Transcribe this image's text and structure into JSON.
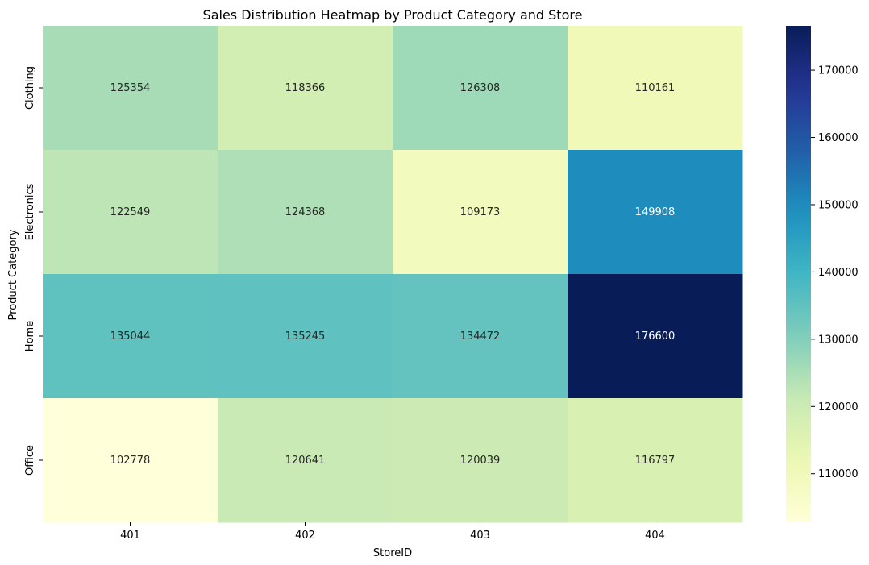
{
  "chart_data": {
    "type": "heatmap",
    "title": "Sales Distribution Heatmap by Product Category and Store",
    "xlabel": "StoreID",
    "ylabel": "Product Category",
    "x_categories": [
      "401",
      "402",
      "403",
      "404"
    ],
    "y_categories": [
      "Clothing",
      "Electronics",
      "Home",
      "Office"
    ],
    "values": [
      [
        125354,
        118366,
        126308,
        110161
      ],
      [
        122549,
        124368,
        109173,
        149908
      ],
      [
        135044,
        135245,
        134472,
        176600
      ],
      [
        102778,
        120641,
        120039,
        116797
      ]
    ],
    "colormap": "YlGnBu",
    "color_range": [
      102778,
      176600
    ],
    "colorbar_ticks": [
      "110000",
      "120000",
      "130000",
      "140000",
      "150000",
      "160000",
      "170000"
    ],
    "annotations": true,
    "grid": false
  }
}
